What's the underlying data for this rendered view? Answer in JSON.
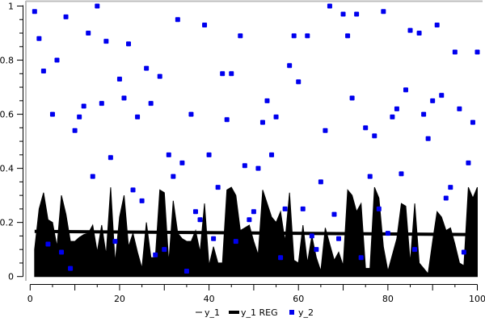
{
  "chart_data": {
    "type": "area",
    "title": "",
    "xlabel": "",
    "ylabel": "",
    "xlim": [
      0,
      100
    ],
    "ylim": [
      0,
      1
    ],
    "x_ticks": [
      0,
      20,
      40,
      60,
      80,
      100
    ],
    "x_tick_labels": [
      "0",
      "20",
      "40",
      "60",
      "80",
      "100"
    ],
    "y_ticks": [
      0,
      0.2,
      0.4,
      0.6,
      0.8,
      1
    ],
    "y_tick_labels": [
      "0",
      "0.2",
      "0.4",
      "0.6",
      "0.8",
      "1"
    ],
    "grid": false,
    "legend_position": "bottom",
    "x": [
      1,
      2,
      3,
      4,
      5,
      6,
      7,
      8,
      9,
      10,
      11,
      12,
      13,
      14,
      15,
      16,
      17,
      18,
      19,
      20,
      21,
      22,
      23,
      24,
      25,
      26,
      27,
      28,
      29,
      30,
      31,
      32,
      33,
      34,
      35,
      36,
      37,
      38,
      39,
      40,
      41,
      42,
      43,
      44,
      45,
      46,
      47,
      48,
      49,
      50,
      51,
      52,
      53,
      54,
      55,
      56,
      57,
      58,
      59,
      60,
      61,
      62,
      63,
      64,
      65,
      66,
      67,
      68,
      69,
      70,
      71,
      72,
      73,
      74,
      75,
      76,
      77,
      78,
      79,
      80,
      81,
      82,
      83,
      84,
      85,
      86,
      87,
      88,
      89,
      90,
      91,
      92,
      93,
      94,
      95,
      96,
      97,
      98,
      99,
      100
    ],
    "series": [
      {
        "name": "y_1",
        "style": "filled-area",
        "color": "#000000",
        "values": [
          0.1,
          0.25,
          0.31,
          0.21,
          0.2,
          0.11,
          0.3,
          0.23,
          0.13,
          0.13,
          0.145,
          0.155,
          0.16,
          0.19,
          0.09,
          0.19,
          0.08,
          0.33,
          0.05,
          0.22,
          0.3,
          0.11,
          0.16,
          0.09,
          0.03,
          0.2,
          0.07,
          0.07,
          0.32,
          0.31,
          0.05,
          0.28,
          0.16,
          0.14,
          0.13,
          0.13,
          0.17,
          0.09,
          0.27,
          0.04,
          0.11,
          0.05,
          0.05,
          0.32,
          0.33,
          0.3,
          0.17,
          0.18,
          0.19,
          0.13,
          0.08,
          0.32,
          0.27,
          0.22,
          0.2,
          0.24,
          0.13,
          0.31,
          0.06,
          0.05,
          0.19,
          0.05,
          0.15,
          0.07,
          0.02,
          0.18,
          0.12,
          0.06,
          0.09,
          0.04,
          0.32,
          0.3,
          0.24,
          0.27,
          0.03,
          0.03,
          0.33,
          0.29,
          0.11,
          0.02,
          0.08,
          0.14,
          0.27,
          0.26,
          0.05,
          0.27,
          0.05,
          0.03,
          0.01,
          0.13,
          0.24,
          0.22,
          0.17,
          0.18,
          0.12,
          0.05,
          0.04,
          0.33,
          0.29,
          0.33
        ]
      },
      {
        "name": "y_1 REG",
        "style": "thick-line",
        "color": "#000000",
        "values_endpoints": {
          "x": [
            1,
            100
          ],
          "y": [
            0.167,
            0.155
          ]
        }
      },
      {
        "name": "y_2",
        "style": "scatter",
        "color": "#0000ee",
        "values": [
          0.98,
          0.88,
          0.76,
          0.12,
          0.6,
          0.8,
          0.09,
          0.96,
          0.03,
          0.54,
          0.59,
          0.63,
          0.9,
          0.37,
          1.0,
          0.64,
          0.87,
          0.44,
          0.13,
          0.73,
          0.66,
          0.86,
          0.32,
          0.59,
          0.28,
          0.77,
          0.64,
          0.08,
          0.74,
          0.1,
          0.45,
          0.37,
          0.95,
          0.42,
          0.02,
          0.6,
          0.24,
          0.21,
          0.93,
          0.45,
          0.14,
          0.33,
          0.75,
          0.58,
          0.75,
          0.13,
          0.89,
          0.41,
          0.21,
          0.24,
          0.4,
          0.57,
          0.65,
          0.45,
          0.59,
          0.07,
          0.25,
          0.78,
          0.89,
          0.72,
          0.25,
          0.89,
          0.15,
          0.1,
          0.35,
          0.54,
          1.0,
          0.23,
          0.14,
          0.97,
          0.89,
          0.66,
          0.97,
          0.07,
          0.55,
          0.37,
          0.52,
          0.25,
          0.98,
          0.16,
          0.59,
          0.62,
          0.38,
          0.69,
          0.91,
          0.1,
          0.9,
          0.6,
          0.51,
          0.65,
          0.93,
          0.67,
          0.29,
          0.33,
          0.83,
          0.62,
          0.09,
          0.42,
          0.57,
          0.83
        ]
      }
    ],
    "legend": [
      "y_1",
      "y_1 REG",
      "y_2"
    ]
  }
}
